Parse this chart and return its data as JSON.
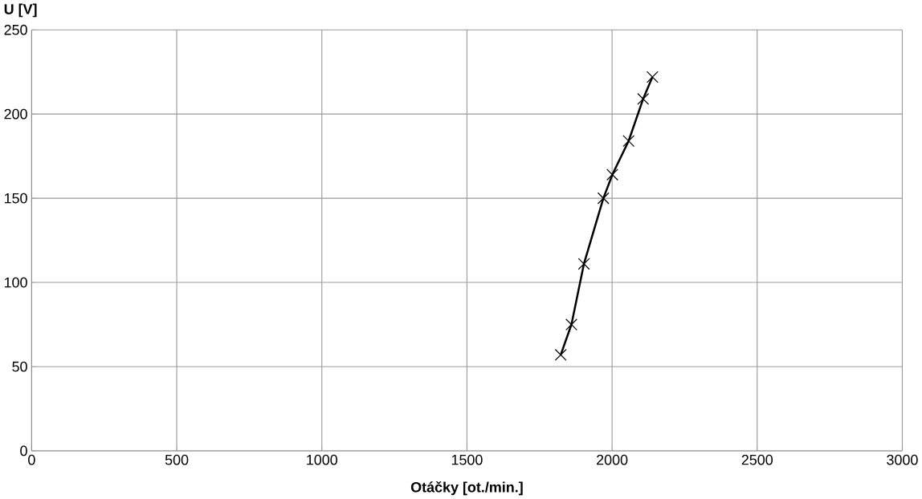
{
  "chart_data": {
    "type": "line",
    "xlabel": "Otáčky [ot./min.]",
    "ylabel": "U [V]",
    "x": [
      1823,
      1860,
      1903,
      1970,
      2001,
      2057,
      2107,
      2139
    ],
    "values": [
      57,
      75,
      111,
      150,
      164,
      184,
      209,
      222
    ],
    "color": "#000000",
    "marker": "cross",
    "line_style": "solid",
    "xlim": [
      0,
      3000
    ],
    "xticks": [
      0,
      500,
      1000,
      1500,
      2000,
      2500,
      3000
    ],
    "ylim": [
      0,
      250
    ],
    "yticks": [
      0,
      50,
      100,
      150,
      200,
      250
    ],
    "grid": true
  }
}
